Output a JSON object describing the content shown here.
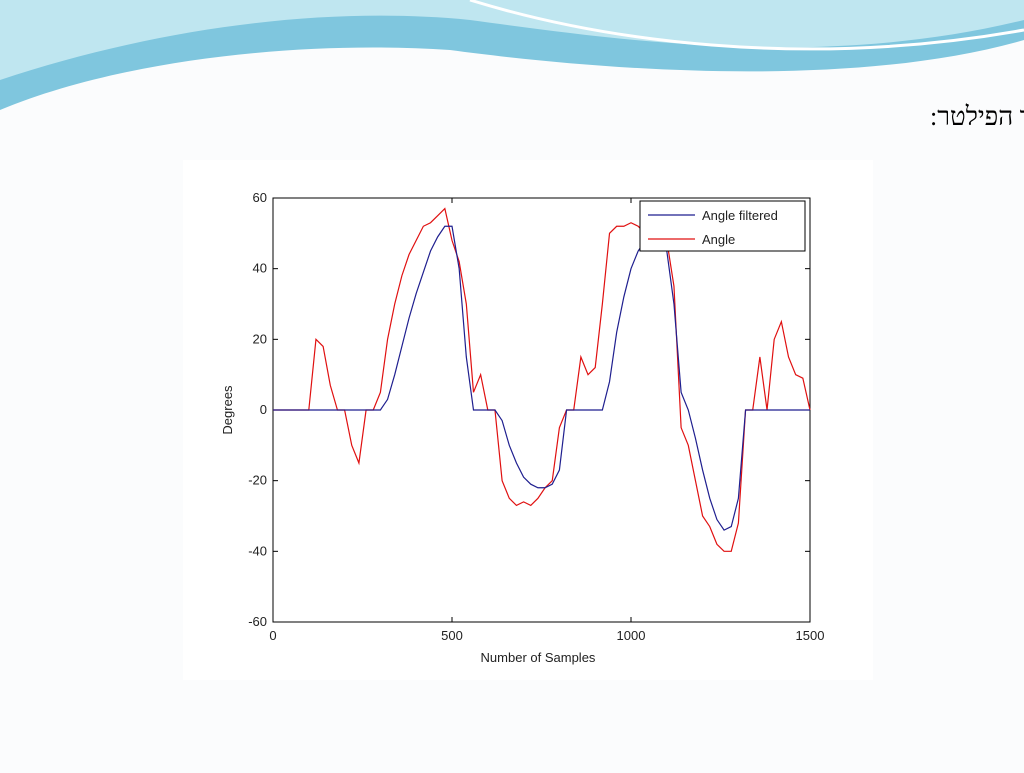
{
  "chart_data": {
    "type": "line",
    "title": "מצורפים גרפים המראים את הזווית ואת הזווית המתקבלת לאחר הפילטר:",
    "xlabel": "Number of Samples",
    "ylabel": "Degrees",
    "x": [
      0,
      20,
      40,
      60,
      80,
      100,
      120,
      140,
      160,
      180,
      200,
      220,
      240,
      260,
      280,
      300,
      320,
      340,
      360,
      380,
      400,
      420,
      440,
      460,
      480,
      500,
      520,
      540,
      560,
      580,
      600,
      620,
      640,
      660,
      680,
      700,
      720,
      740,
      760,
      780,
      800,
      820,
      840,
      860,
      880,
      900,
      920,
      940,
      960,
      980,
      1000,
      1020,
      1040,
      1060,
      1080,
      1100,
      1120,
      1140,
      1160,
      1180,
      1200,
      1220,
      1240,
      1260,
      1280,
      1300,
      1320,
      1340,
      1360,
      1380,
      1400,
      1420,
      1440,
      1460,
      1480,
      1500
    ],
    "series": [
      {
        "name": "Angle filtered",
        "color": "#1f1f8f",
        "values": [
          0,
          0,
          0,
          0,
          0,
          0,
          0,
          0,
          0,
          0,
          0,
          0,
          0,
          0,
          0,
          0,
          3,
          10,
          18,
          26,
          33,
          39,
          45,
          49,
          52,
          52,
          40,
          15,
          0,
          0,
          0,
          0,
          -3,
          -10,
          -15,
          -19,
          -21,
          -22,
          -22,
          -21,
          -17,
          0,
          0,
          0,
          0,
          0,
          0,
          8,
          22,
          32,
          40,
          45,
          48,
          50,
          49,
          45,
          30,
          5,
          0,
          -8,
          -17,
          -25,
          -31,
          -34,
          -33,
          -25,
          0,
          0,
          0,
          0,
          0,
          0,
          0,
          0,
          0,
          0
        ]
      },
      {
        "name": "Angle",
        "color": "#e01010",
        "values": [
          0,
          0,
          0,
          0,
          0,
          0,
          20,
          18,
          7,
          0,
          0,
          -10,
          -15,
          0,
          0,
          5,
          20,
          30,
          38,
          44,
          48,
          52,
          53,
          55,
          57,
          48,
          42,
          30,
          5,
          10,
          0,
          0,
          -20,
          -25,
          -27,
          -26,
          -27,
          -25,
          -22,
          -20,
          -5,
          0,
          0,
          15,
          10,
          12,
          30,
          50,
          52,
          52,
          53,
          52,
          50,
          51,
          50,
          48,
          35,
          -5,
          -10,
          -20,
          -30,
          -33,
          -38,
          -40,
          -40,
          -32,
          0,
          0,
          15,
          0,
          20,
          25,
          15,
          10,
          9,
          0
        ]
      }
    ],
    "xlim": [
      0,
      1500
    ],
    "xticks": [
      0,
      500,
      1000,
      1500
    ],
    "ylim": [
      -60,
      60
    ],
    "yticks": [
      -60,
      -40,
      -20,
      0,
      20,
      40,
      60
    ],
    "legend": "upper right"
  }
}
